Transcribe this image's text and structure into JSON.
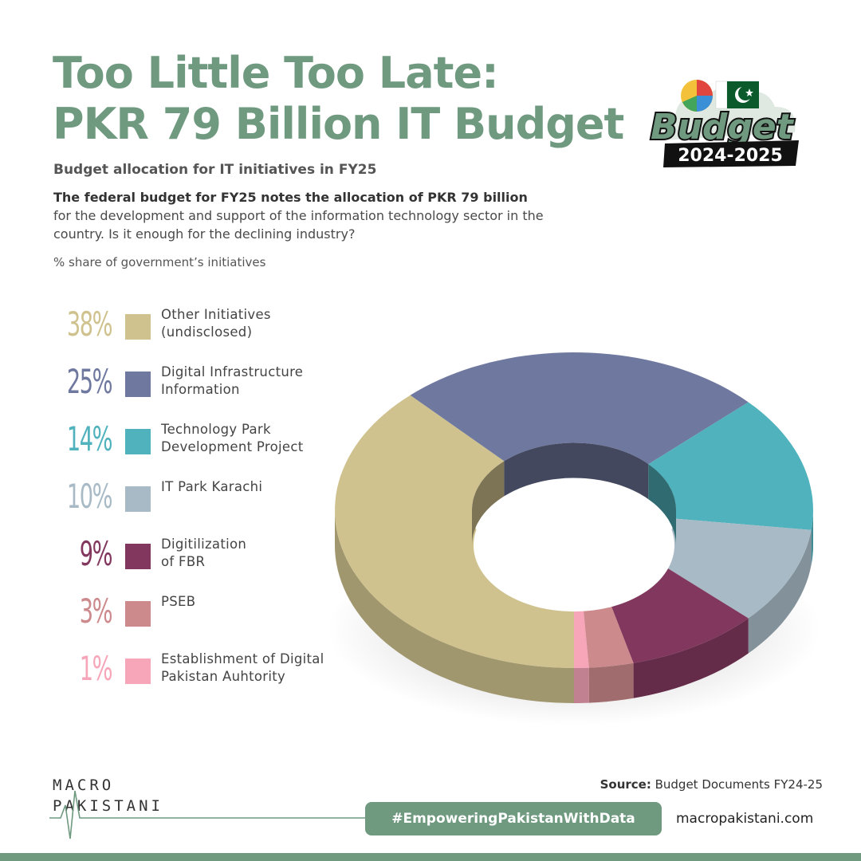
{
  "header": {
    "title_line1": "Too Little Too Late:",
    "title_line2": "PKR 79 Billion IT Budget",
    "subtitle": "Budget allocation for IT initiatives in FY25",
    "description_bold": "The federal budget for FY25 notes the allocation of PKR 79 billion",
    "description_rest": " for the development and support of the information technology sector in the country. Is it enough for the declining industry?",
    "share_label": "% share of government’s initiatives"
  },
  "badge": {
    "word": "Budget",
    "years": "2024-2025",
    "colors": {
      "green": "#0b5a2c",
      "text_fill": "#6f9a80",
      "dark": "#111111"
    }
  },
  "chart_data": {
    "type": "pie",
    "style": "3d-donut",
    "categories": [
      "Other Initiatives (undisclosed)",
      "Digital Infrastructure Information",
      "Technology Park Development Project",
      "IT Park Karachi",
      "Digitilization of FBR",
      "PSEB",
      "Establishment of Digital Pakistan Auhtority"
    ],
    "values": [
      38,
      25,
      14,
      10,
      9,
      3,
      1
    ],
    "labels": [
      "38%",
      "25%",
      "14%",
      "10%",
      "9%",
      "3%",
      "1%"
    ],
    "legend_text": [
      "Other Initiatives\n(undisclosed)",
      "Digital Infrastructure\nInformation",
      "Technology Park\nDevelopment Project",
      "IT Park Karachi",
      "Digitilization\nof FBR",
      "PSEB",
      "Establishment of Digital\nPakistan Auhtority"
    ],
    "colors": [
      "#cfc28e",
      "#6f789f",
      "#4fb2bd",
      "#a8bac6",
      "#82385e",
      "#cd8a8d",
      "#f7a5b9"
    ],
    "legend_position": "left"
  },
  "footer": {
    "source_label": "Source:",
    "source_text": " Budget Documents FY24-25",
    "logo_line1": "MACRO",
    "logo_line2": "PAKISTANI",
    "hashtag": "#EmpoweringPakistanWithData",
    "website": "macropakistani.com"
  }
}
